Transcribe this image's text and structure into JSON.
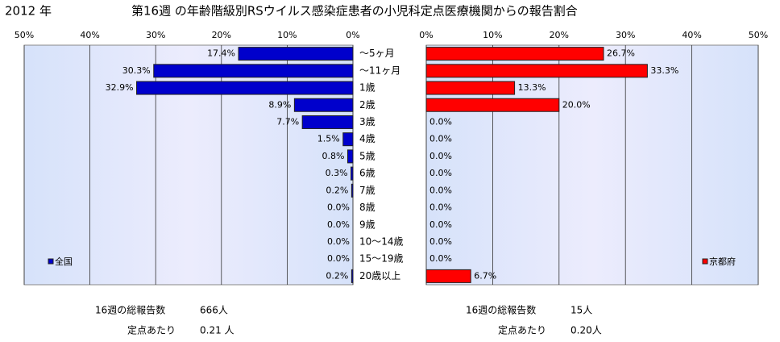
{
  "header": {
    "year": "2012 年",
    "title": "第16週 の年齢階級別RSウイルス感染症患者の小児科定点医療機関からの報告割合"
  },
  "chart_data": {
    "type": "bar",
    "categories": [
      "～5ヶ月",
      "～11ヶ月",
      "1歳",
      "2歳",
      "3歳",
      "4歳",
      "5歳",
      "6歳",
      "7歳",
      "8歳",
      "9歳",
      "10～14歳",
      "15～19歳",
      "20歳以上"
    ],
    "xlim": [
      0,
      50
    ],
    "xticks": [
      {
        "value": 0,
        "label": "0%"
      },
      {
        "value": 10,
        "label": "10%"
      },
      {
        "value": 20,
        "label": "20%"
      },
      {
        "value": 30,
        "label": "30%"
      },
      {
        "value": 40,
        "label": "40%"
      },
      {
        "value": 50,
        "label": "50%"
      }
    ],
    "grid": true,
    "series": [
      {
        "name": "全国",
        "color": "#0000cc",
        "legend": "lower left",
        "values": [
          17.4,
          30.3,
          32.9,
          8.9,
          7.7,
          1.5,
          0.8,
          0.3,
          0.2,
          0.0,
          0.0,
          0.0,
          0.0,
          0.2
        ],
        "value_labels": [
          "17.4%",
          "30.3%",
          "32.9%",
          "8.9%",
          "7.7%",
          "1.5%",
          "0.8%",
          "0.3%",
          "0.2%",
          "0.0%",
          "0.0%",
          "0.0%",
          "0.0%",
          "0.2%"
        ],
        "total_label": "16週の総報告数",
        "total": "666人",
        "per_label": "定点あたり",
        "per": "0.21 人"
      },
      {
        "name": "京都府",
        "color": "#ff0000",
        "legend": "lower right",
        "values": [
          26.7,
          33.3,
          13.3,
          20.0,
          0.0,
          0.0,
          0.0,
          0.0,
          0.0,
          0.0,
          0.0,
          0.0,
          0.0,
          6.7
        ],
        "value_labels": [
          "26.7%",
          "33.3%",
          "13.3%",
          "20.0%",
          "0.0%",
          "0.0%",
          "0.0%",
          "0.0%",
          "0.0%",
          "0.0%",
          "0.0%",
          "0.0%",
          "0.0%",
          "6.7%"
        ],
        "total_label": "16週の総報告数",
        "total": "15人",
        "per_label": "定点あたり",
        "per": "0.20人"
      }
    ]
  }
}
